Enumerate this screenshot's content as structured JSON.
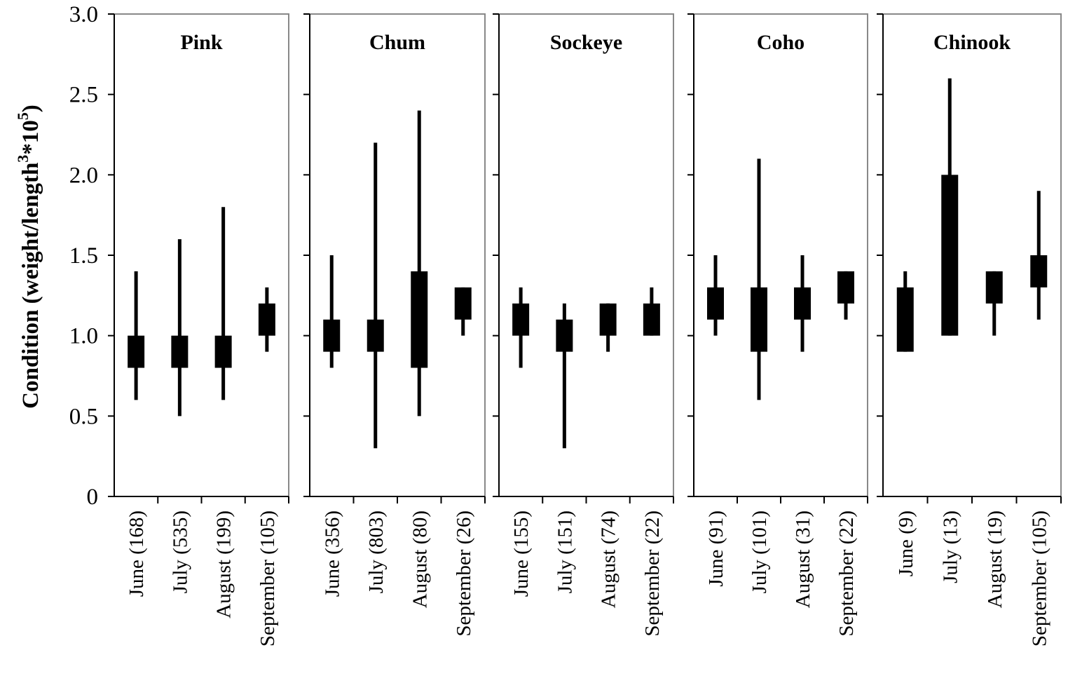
{
  "y_axis": {
    "label_main": "Condition (weight/length",
    "label_sup1": "3",
    "label_mid": "*10",
    "label_sup2": "5",
    "label_end": ")",
    "ticks": [
      {
        "value": 0,
        "label": "0"
      },
      {
        "value": 0.5,
        "label": "0.5"
      },
      {
        "value": 1.0,
        "label": "1.0"
      },
      {
        "value": 1.5,
        "label": "1.5"
      },
      {
        "value": 2.0,
        "label": "2.0"
      },
      {
        "value": 2.5,
        "label": "2.5"
      },
      {
        "value": 3.0,
        "label": "3.0"
      }
    ]
  },
  "chart_data": {
    "type": "box",
    "ylim": [
      0,
      3.0
    ],
    "ylabel": "Condition (weight/length^3*10^5)",
    "colors": {
      "box": "#000000",
      "frame": "#888888",
      "axis": "#000000"
    },
    "panels": [
      {
        "title": "Pink",
        "groups": [
          {
            "label": "June (168)",
            "min": 0.6,
            "q1": 0.8,
            "q3": 1.0,
            "max": 1.4
          },
          {
            "label": "July (535)",
            "min": 0.5,
            "q1": 0.8,
            "q3": 1.0,
            "max": 1.6
          },
          {
            "label": "August (199)",
            "min": 0.6,
            "q1": 0.8,
            "q3": 1.0,
            "max": 1.8
          },
          {
            "label": "September (105)",
            "min": 0.9,
            "q1": 1.0,
            "q3": 1.2,
            "max": 1.3
          }
        ]
      },
      {
        "title": "Chum",
        "groups": [
          {
            "label": "June (356)",
            "min": 0.8,
            "q1": 0.9,
            "q3": 1.1,
            "max": 1.5
          },
          {
            "label": "July (803)",
            "min": 0.3,
            "q1": 0.9,
            "q3": 1.1,
            "max": 2.2
          },
          {
            "label": "August (80)",
            "min": 0.5,
            "q1": 0.8,
            "q3": 1.4,
            "max": 2.4
          },
          {
            "label": "September (26)",
            "min": 1.0,
            "q1": 1.1,
            "q3": 1.3,
            "max": 1.3
          }
        ]
      },
      {
        "title": "Sockeye",
        "groups": [
          {
            "label": "June (155)",
            "min": 0.8,
            "q1": 1.0,
            "q3": 1.2,
            "max": 1.3
          },
          {
            "label": "July (151)",
            "min": 0.3,
            "q1": 0.9,
            "q3": 1.1,
            "max": 1.2
          },
          {
            "label": "August (74)",
            "min": 0.9,
            "q1": 1.0,
            "q3": 1.2,
            "max": 1.2
          },
          {
            "label": "September (22)",
            "min": 1.0,
            "q1": 1.0,
            "q3": 1.2,
            "max": 1.3
          }
        ]
      },
      {
        "title": "Coho",
        "groups": [
          {
            "label": "June (91)",
            "min": 1.0,
            "q1": 1.1,
            "q3": 1.3,
            "max": 1.5
          },
          {
            "label": "July (101)",
            "min": 0.6,
            "q1": 0.9,
            "q3": 1.3,
            "max": 2.1
          },
          {
            "label": "August (31)",
            "min": 0.9,
            "q1": 1.1,
            "q3": 1.3,
            "max": 1.5
          },
          {
            "label": "September (22)",
            "min": 1.1,
            "q1": 1.2,
            "q3": 1.4,
            "max": 1.4
          }
        ]
      },
      {
        "title": "Chinook",
        "groups": [
          {
            "label": "June (9)",
            "min": 0.9,
            "q1": 0.9,
            "q3": 1.3,
            "max": 1.4
          },
          {
            "label": "July (13)",
            "min": 1.0,
            "q1": 1.0,
            "q3": 2.0,
            "max": 2.6
          },
          {
            "label": "August (19)",
            "min": 1.0,
            "q1": 1.2,
            "q3": 1.4,
            "max": 1.4
          },
          {
            "label": "September (105)",
            "min": 1.1,
            "q1": 1.3,
            "q3": 1.5,
            "max": 1.9
          }
        ]
      }
    ]
  }
}
